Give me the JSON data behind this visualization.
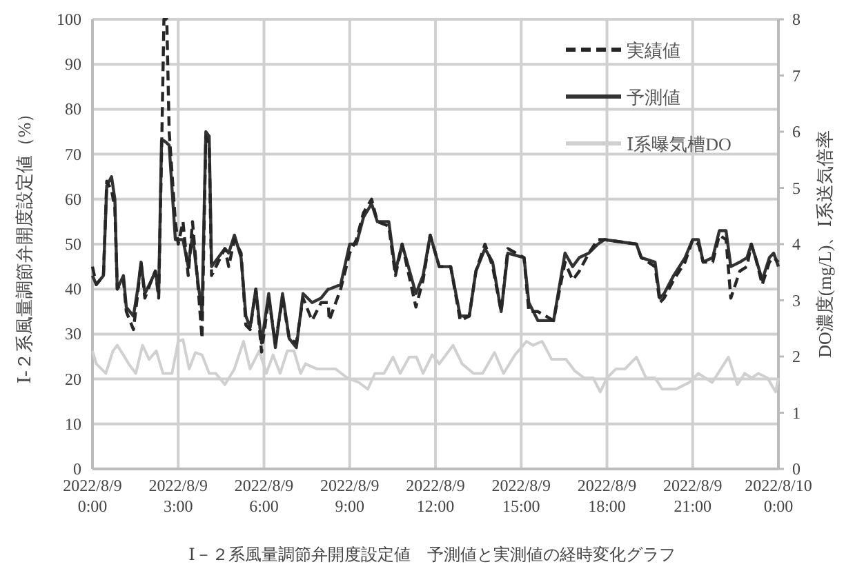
{
  "chart_data": {
    "type": "line",
    "ylabel": "Ⅰ-２系風量調節弁開度設定値（%）",
    "y2label": "DO濃度(mg/L)、Ⅰ系送気倍率",
    "annotations": [
      "Ⅰ－２系風量調節弁開度設定値　予測値と実測値の経時変化グラフ"
    ],
    "xlim": [
      "2022-08-09T00:00",
      "2022-08-10T00:00"
    ],
    "xticks": [
      {
        "value": "2022-08-09T00:00",
        "label": "2022/8/9 0:00"
      },
      {
        "value": "2022-08-09T03:00",
        "label": "2022/8/9 3:00"
      },
      {
        "value": "2022-08-09T06:00",
        "label": "2022/8/9 6:00"
      },
      {
        "value": "2022-08-09T09:00",
        "label": "2022/8/9 9:00"
      },
      {
        "value": "2022-08-09T12:00",
        "label": "2022/8/9 12:00"
      },
      {
        "value": "2022-08-09T15:00",
        "label": "2022/8/9 15:00"
      },
      {
        "value": "2022-08-09T18:00",
        "label": "2022/8/9 18:00"
      },
      {
        "value": "2022-08-09T21:00",
        "label": "2022/8/9 21:00"
      },
      {
        "value": "2022-08-10T00:00",
        "label": "2022/8/10 0:00"
      }
    ],
    "ylim": [
      0,
      100
    ],
    "yticks": [
      0,
      10,
      20,
      30,
      40,
      50,
      60,
      70,
      80,
      90,
      100
    ],
    "y2lim": [
      0,
      8
    ],
    "y2ticks": [
      0,
      1,
      2,
      3,
      4,
      5,
      6,
      7,
      8
    ],
    "grid": true,
    "legend": "top right",
    "marker": "none",
    "x": [
      "2022-08-09T00:00",
      "2022-08-09T00:08",
      "2022-08-09T00:23",
      "2022-08-09T00:30",
      "2022-08-09T00:40",
      "2022-08-09T00:47",
      "2022-08-09T00:52",
      "2022-08-09T01:05",
      "2022-08-09T01:11",
      "2022-08-09T01:26",
      "2022-08-09T01:35",
      "2022-08-09T01:42",
      "2022-08-09T01:50",
      "2022-08-09T02:04",
      "2022-08-09T02:12",
      "2022-08-09T02:19",
      "2022-08-09T02:25",
      "2022-08-09T02:30",
      "2022-08-09T02:36",
      "2022-08-09T02:41",
      "2022-08-09T02:54",
      "2022-08-09T03:00",
      "2022-08-09T03:10",
      "2022-08-09T03:21",
      "2022-08-09T03:30",
      "2022-08-09T03:42",
      "2022-08-09T03:50",
      "2022-08-09T03:58",
      "2022-08-09T04:05",
      "2022-08-09T04:10",
      "2022-08-09T04:24",
      "2022-08-09T04:38",
      "2022-08-09T04:46",
      "2022-08-09T04:58",
      "2022-08-09T05:12",
      "2022-08-09T05:22",
      "2022-08-09T05:31",
      "2022-08-09T05:43",
      "2022-08-09T05:55",
      "2022-08-09T06:10",
      "2022-08-09T06:24",
      "2022-08-09T06:39",
      "2022-08-09T06:53",
      "2022-08-09T07:08",
      "2022-08-09T07:22",
      "2022-08-09T07:41",
      "2022-08-09T08:00",
      "2022-08-09T08:15",
      "2022-08-09T08:17",
      "2022-08-09T08:41",
      "2022-08-09T09:00",
      "2022-08-09T09:14",
      "2022-08-09T09:29",
      "2022-08-09T09:46",
      "2022-08-09T09:58",
      "2022-08-09T10:22",
      "2022-08-09T10:36",
      "2022-08-09T10:50",
      "2022-08-09T11:19",
      "2022-08-09T11:34",
      "2022-08-09T11:49",
      "2022-08-09T12:08",
      "2022-08-09T12:32",
      "2022-08-09T12:52",
      "2022-08-09T13:11",
      "2022-08-09T13:25",
      "2022-08-09T13:44",
      "2022-08-09T14:00",
      "2022-08-09T14:18",
      "2022-08-09T14:32",
      "2022-08-09T15:06",
      "2022-08-09T15:16",
      "2022-08-09T15:35",
      "2022-08-09T16:08",
      "2022-08-09T16:32",
      "2022-08-09T16:48",
      "2022-08-09T17:02",
      "2022-08-09T17:22",
      "2022-08-09T17:41",
      "2022-08-09T17:55",
      "2022-08-09T19:02",
      "2022-08-09T19:12",
      "2022-08-09T19:41",
      "2022-08-09T19:51",
      "2022-08-09T20:00",
      "2022-08-09T20:20",
      "2022-08-09T20:44",
      "2022-08-09T21:00",
      "2022-08-09T21:12",
      "2022-08-09T21:22",
      "2022-08-09T21:42",
      "2022-08-09T21:56",
      "2022-08-09T22:10",
      "2022-08-09T22:20",
      "2022-08-09T22:39",
      "2022-08-09T22:54",
      "2022-08-09T23:03",
      "2022-08-09T23:12",
      "2022-08-09T23:26",
      "2022-08-09T23:41",
      "2022-08-09T23:50",
      "2022-08-10T00:00"
    ],
    "series": [
      {
        "name": "実績値",
        "color": "#262626",
        "line_style": "dashed",
        "values": [
          45,
          41,
          43,
          64,
          62,
          58,
          40,
          42,
          35,
          31,
          39,
          46,
          38,
          42,
          44,
          38,
          70,
          100,
          100,
          75,
          55,
          50,
          55,
          43,
          55,
          40,
          29,
          74,
          72,
          43,
          46,
          49,
          45,
          51,
          48,
          32,
          31,
          40,
          26,
          38,
          28,
          38,
          29,
          28,
          38,
          33,
          37,
          37,
          33,
          40,
          48,
          51,
          57,
          60,
          55,
          54,
          43,
          50,
          36,
          42,
          52,
          45,
          45,
          33,
          34,
          44,
          50,
          45,
          35,
          49,
          47,
          35,
          35,
          33,
          46,
          42,
          44,
          48,
          51,
          51,
          50,
          47,
          45,
          37,
          38,
          42,
          46,
          51,
          50,
          46,
          46,
          52,
          51,
          38,
          44,
          45,
          50,
          47,
          41,
          46,
          47,
          46
        ]
      },
      {
        "name": "予測値",
        "color": "#333333",
        "line_style": "solid",
        "values": [
          43,
          41,
          43,
          63,
          65,
          60,
          40,
          43,
          36,
          34,
          40,
          46,
          39,
          42,
          44,
          39,
          73,
          73,
          72.5,
          72,
          51,
          51,
          51,
          45,
          52,
          41,
          35,
          75,
          74,
          45,
          47,
          49,
          48,
          52,
          47,
          34,
          31.5,
          40,
          28,
          39,
          27,
          39,
          29,
          27,
          39,
          37,
          38,
          40,
          40,
          41,
          50,
          50,
          56,
          59,
          55,
          55,
          44,
          50,
          39,
          43,
          52,
          45,
          45,
          34,
          34,
          44,
          49,
          46,
          35,
          48,
          47,
          37,
          33,
          33,
          48,
          45,
          47,
          48,
          50,
          51,
          50,
          47,
          46,
          38,
          39,
          43,
          47,
          51,
          51,
          46,
          47,
          53,
          53,
          45,
          46,
          47,
          50,
          47,
          42,
          47,
          48,
          45
        ]
      },
      {
        "name": "Ⅰ系曝気槽DO",
        "color": "#d0d0d0",
        "line_style": "solid",
        "axis": "y2",
        "x": [
          "2022-08-09T00:00",
          "2022-08-09T00:08",
          "2022-08-09T00:28",
          "2022-08-09T00:43",
          "2022-08-09T00:52",
          "2022-08-09T01:07",
          "2022-08-09T01:16",
          "2022-08-09T01:31",
          "2022-08-09T01:45",
          "2022-08-09T01:59",
          "2022-08-09T02:14",
          "2022-08-09T02:28",
          "2022-08-09T02:47",
          "2022-08-09T03:00",
          "2022-08-09T03:10",
          "2022-08-09T03:23",
          "2022-08-09T03:36",
          "2022-08-09T03:50",
          "2022-08-09T04:05",
          "2022-08-09T04:19",
          "2022-08-09T04:38",
          "2022-08-09T04:58",
          "2022-08-09T05:17",
          "2022-08-09T05:31",
          "2022-08-09T05:50",
          "2022-08-09T06:05",
          "2022-08-09T06:19",
          "2022-08-09T06:34",
          "2022-08-09T06:49",
          "2022-08-09T07:03",
          "2022-08-09T07:17",
          "2022-08-09T07:27",
          "2022-08-09T07:51",
          "2022-08-09T08:15",
          "2022-08-09T08:30",
          "2022-08-09T08:55",
          "2022-08-09T09:19",
          "2022-08-09T09:38",
          "2022-08-09T09:53",
          "2022-08-09T10:12",
          "2022-08-09T10:31",
          "2022-08-09T10:46",
          "2022-08-09T11:05",
          "2022-08-09T11:20",
          "2022-08-09T11:34",
          "2022-08-09T11:53",
          "2022-08-09T12:08",
          "2022-08-09T12:37",
          "2022-08-09T12:56",
          "2022-08-09T13:20",
          "2022-08-09T13:39",
          "2022-08-09T14:04",
          "2022-08-09T14:23",
          "2022-08-09T14:47",
          "2022-08-09T15:11",
          "2022-08-09T15:25",
          "2022-08-09T15:44",
          "2022-08-09T16:04",
          "2022-08-09T16:34",
          "2022-08-09T16:53",
          "2022-08-09T17:12",
          "2022-08-09T17:31",
          "2022-08-09T17:46",
          "2022-08-09T18:00",
          "2022-08-09T18:19",
          "2022-08-09T18:38",
          "2022-08-09T19:02",
          "2022-08-09T19:22",
          "2022-08-09T19:41",
          "2022-08-09T19:56",
          "2022-08-09T20:25",
          "2022-08-09T20:53",
          "2022-08-09T21:12",
          "2022-08-09T21:41",
          "2022-08-09T22:15",
          "2022-08-09T22:34",
          "2022-08-09T22:49",
          "2022-08-09T23:04",
          "2022-08-09T23:18",
          "2022-08-09T23:37",
          "2022-08-09T23:54",
          "2022-08-10T00:00"
        ],
        "values": [
          2.1,
          1.87,
          1.7,
          2.1,
          2.2,
          2.0,
          1.87,
          1.7,
          2.2,
          1.95,
          2.1,
          1.7,
          1.7,
          2.27,
          2.3,
          1.78,
          2.07,
          2.03,
          1.7,
          1.7,
          1.5,
          1.78,
          2.27,
          1.78,
          2.1,
          1.7,
          2.03,
          1.7,
          2.1,
          2.1,
          1.7,
          1.87,
          1.78,
          1.78,
          1.78,
          1.62,
          1.54,
          1.42,
          1.7,
          1.7,
          1.99,
          1.7,
          1.99,
          1.99,
          1.7,
          2.03,
          1.87,
          2.2,
          1.87,
          1.7,
          1.7,
          2.07,
          1.7,
          2.03,
          2.27,
          2.2,
          2.27,
          1.95,
          1.95,
          1.74,
          1.62,
          1.62,
          1.37,
          1.62,
          1.78,
          1.78,
          1.99,
          1.62,
          1.62,
          1.42,
          1.42,
          1.54,
          1.7,
          1.54,
          1.99,
          1.5,
          1.7,
          1.62,
          1.7,
          1.62,
          1.37,
          1.62
        ]
      }
    ]
  }
}
